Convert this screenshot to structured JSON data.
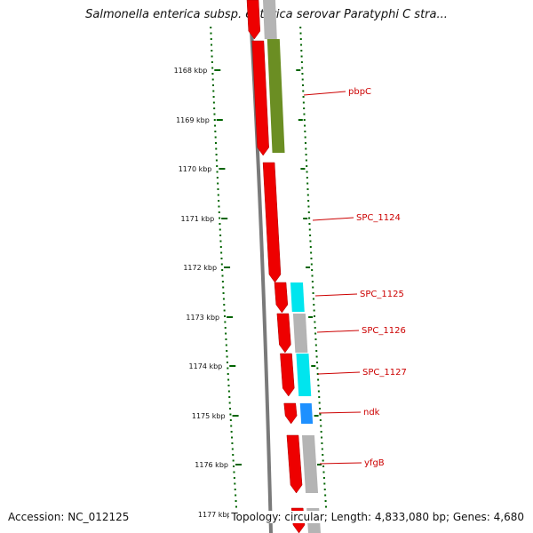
{
  "title": "Salmonella enterica subsp. enterica serovar Paratyphi C stra...",
  "accession": "Accession: NC_012125",
  "summary": "Topology: circular; Length: 4,833,080 bp; Genes: 4,680",
  "colors": {
    "cds_forward": "#ee0000",
    "cog_green": "#6b8e23",
    "cog_gray": "#b4b4b4",
    "cog_cyan": "#00e5ee",
    "cog_blue": "#1e90ff",
    "backbone": "#777777",
    "tick": "#006400",
    "label": "#cc0000"
  },
  "scale": {
    "unit": "kbp",
    "ticks": [
      "1168 kbp",
      "1169 kbp",
      "1170 kbp",
      "1171 kbp",
      "1172 kbp",
      "1173 kbp",
      "1174 kbp",
      "1175 kbp",
      "1176 kbp",
      "1177 kbp"
    ]
  },
  "genes": [
    {
      "label": "pbpC"
    },
    {
      "label": "SPC_1124"
    },
    {
      "label": "SPC_1125"
    },
    {
      "label": "SPC_1126"
    },
    {
      "label": "SPC_1127"
    },
    {
      "label": "ndk"
    },
    {
      "label": "yfgB"
    }
  ]
}
